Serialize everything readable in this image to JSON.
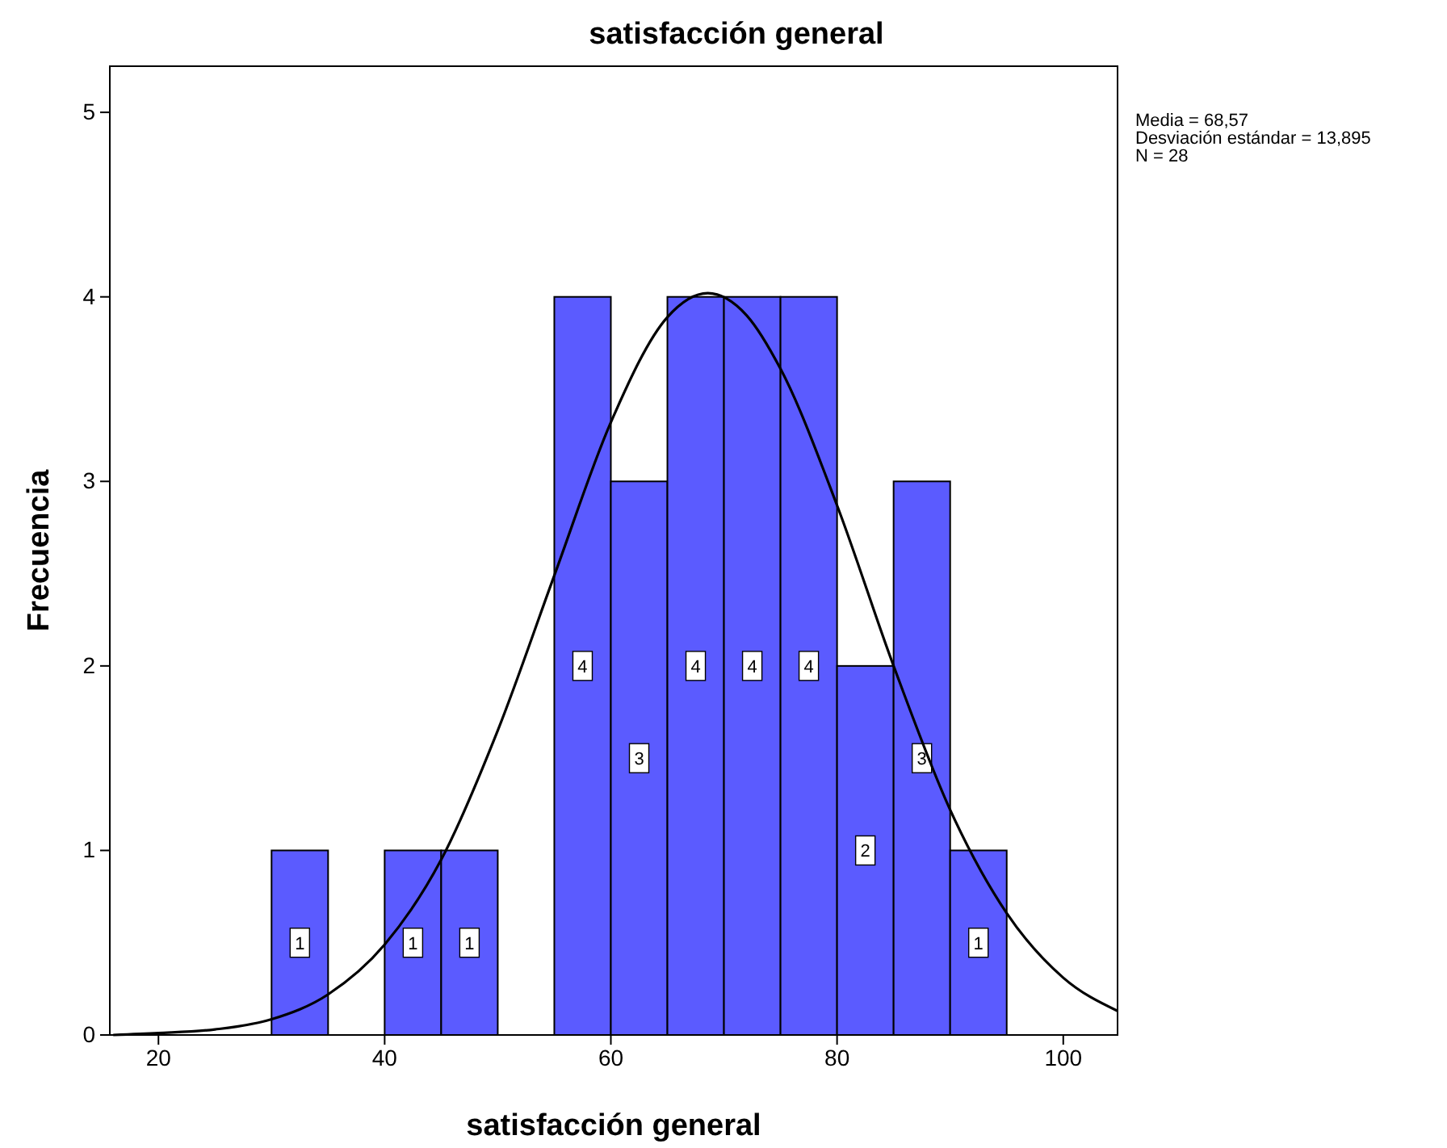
{
  "chart_data": {
    "type": "histogram",
    "title": "satisfacción general",
    "xlabel": "satisfacción general",
    "ylabel": "Frecuencia",
    "bins": [
      30,
      35,
      40,
      45,
      50,
      55,
      60,
      65,
      70,
      75,
      80,
      85,
      90,
      95
    ],
    "values": [
      1,
      0,
      1,
      1,
      0,
      4,
      3,
      4,
      4,
      4,
      2,
      3,
      1
    ],
    "value_labels": [
      "1",
      null,
      "1",
      "1",
      null,
      "4",
      "3",
      "4",
      "4",
      "4",
      "2",
      "3",
      "1"
    ],
    "color": "#5b5bff",
    "series": [
      {
        "type": "line",
        "color": "#000000",
        "x": [
          16,
          20,
          25,
          30,
          35,
          40,
          45,
          50,
          55,
          60,
          65,
          68.57,
          72,
          75,
          80,
          85,
          90,
          95,
          100,
          104.8
        ],
        "values": [
          0,
          0.01,
          0.03,
          0.085,
          0.22,
          0.49,
          0.95,
          1.65,
          2.49,
          3.32,
          3.89,
          4.02,
          3.9,
          3.61,
          2.87,
          2.0,
          1.22,
          0.66,
          0.31,
          0.13
        ]
      }
    ],
    "xlim": [
      15.7,
      104.8
    ],
    "xticks": [
      20,
      40,
      60,
      80,
      100
    ],
    "ylim": [
      0,
      5.25
    ],
    "yticks": [
      0,
      1,
      2,
      3,
      4,
      5
    ],
    "grid": false,
    "annotations": [
      "Media = 68,57",
      "Desviación estándar = 13,895",
      "N = 28"
    ]
  }
}
